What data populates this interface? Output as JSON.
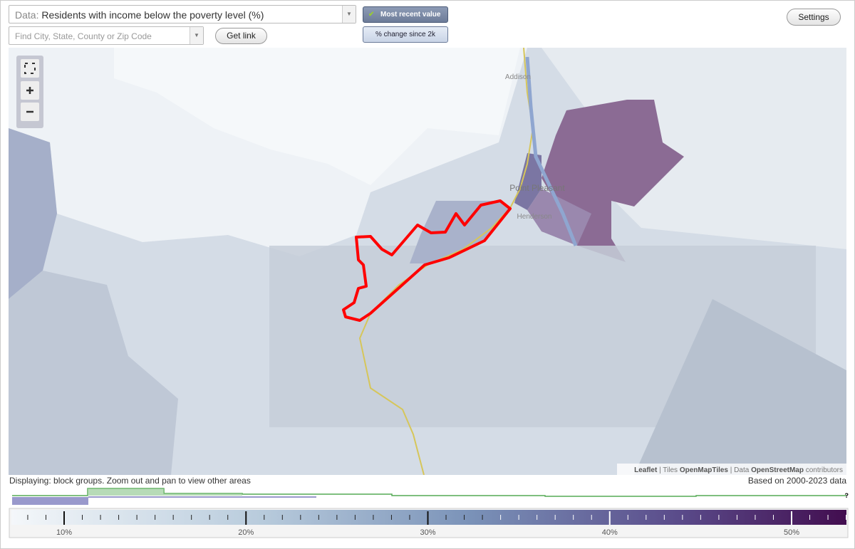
{
  "toolbar": {
    "data_label": "Data:",
    "data_value": "Residents with income below the poverty level (%)",
    "search_placeholder": "Find City, State, County or Zip Code",
    "get_link": "Get link",
    "most_recent": "Most recent value",
    "change": "% change since 2k",
    "settings": "Settings"
  },
  "map": {
    "places": [
      "Addison",
      "Point Pleasant",
      "Henderson"
    ],
    "attribution": {
      "leaflet": "Leaflet",
      "sep1": " | Tiles ",
      "tiles": "OpenMapTiles",
      "sep2": " | Data ",
      "osm": "OpenStreetMap",
      "end": " contributors"
    }
  },
  "status": {
    "left": "Displaying: block groups. Zoom out and pan to view other areas",
    "right": "Based on 2000-2023 data",
    "help": "?"
  },
  "legend": {
    "ticks": [
      {
        "value": 10,
        "label": "10%"
      },
      {
        "value": 20,
        "label": "20%"
      },
      {
        "value": 30,
        "label": "30%"
      },
      {
        "value": 40,
        "label": "40%"
      },
      {
        "value": 50,
        "label": "50%"
      }
    ]
  }
}
